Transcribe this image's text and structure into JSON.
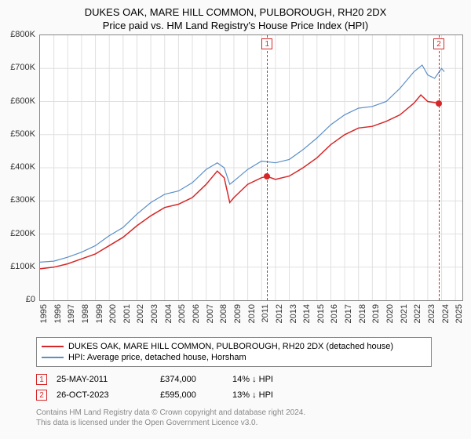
{
  "title": "DUKES OAK, MARE HILL COMMON, PULBOROUGH, RH20 2DX",
  "subtitle": "Price paid vs. HM Land Registry's House Price Index (HPI)",
  "chart": {
    "type": "line",
    "x_range": [
      1995,
      2025.5
    ],
    "y_range": [
      0,
      800000
    ],
    "y_ticks": [
      0,
      100000,
      200000,
      300000,
      400000,
      500000,
      600000,
      700000,
      800000
    ],
    "y_tick_labels": [
      "£0",
      "£100K",
      "£200K",
      "£300K",
      "£400K",
      "£500K",
      "£600K",
      "£700K",
      "£800K"
    ],
    "x_ticks": [
      1995,
      1996,
      1997,
      1998,
      1999,
      2000,
      2001,
      2002,
      2003,
      2004,
      2005,
      2006,
      2007,
      2008,
      2009,
      2010,
      2011,
      2012,
      2013,
      2014,
      2015,
      2016,
      2017,
      2018,
      2019,
      2020,
      2021,
      2022,
      2023,
      2024,
      2025
    ],
    "grid_color": "#e0e0e0",
    "background_color": "#ffffff",
    "border_color": "#888888",
    "series": [
      {
        "name": "price_paid",
        "label": "DUKES OAK, MARE HILL COMMON, PULBOROUGH, RH20 2DX (detached house)",
        "color": "#d62728",
        "width": 1.5,
        "data": [
          [
            1995,
            95000
          ],
          [
            1996,
            100000
          ],
          [
            1997,
            110000
          ],
          [
            1998,
            125000
          ],
          [
            1999,
            140000
          ],
          [
            2000,
            165000
          ],
          [
            2001,
            190000
          ],
          [
            2002,
            225000
          ],
          [
            2003,
            255000
          ],
          [
            2004,
            280000
          ],
          [
            2005,
            290000
          ],
          [
            2006,
            310000
          ],
          [
            2007,
            350000
          ],
          [
            2007.8,
            390000
          ],
          [
            2008.3,
            370000
          ],
          [
            2008.7,
            295000
          ],
          [
            2009,
            310000
          ],
          [
            2010,
            350000
          ],
          [
            2011,
            370000
          ],
          [
            2011.4,
            374000
          ],
          [
            2012,
            365000
          ],
          [
            2013,
            375000
          ],
          [
            2014,
            400000
          ],
          [
            2015,
            430000
          ],
          [
            2016,
            470000
          ],
          [
            2017,
            500000
          ],
          [
            2018,
            520000
          ],
          [
            2019,
            525000
          ],
          [
            2020,
            540000
          ],
          [
            2021,
            560000
          ],
          [
            2022,
            595000
          ],
          [
            2022.5,
            620000
          ],
          [
            2023,
            600000
          ],
          [
            2023.8,
            595000
          ]
        ]
      },
      {
        "name": "hpi",
        "label": "HPI: Average price, detached house, Horsham",
        "color": "#5b8fc7",
        "width": 1.2,
        "data": [
          [
            1995,
            115000
          ],
          [
            1996,
            118000
          ],
          [
            1997,
            130000
          ],
          [
            1998,
            145000
          ],
          [
            1999,
            165000
          ],
          [
            2000,
            195000
          ],
          [
            2001,
            220000
          ],
          [
            2002,
            260000
          ],
          [
            2003,
            295000
          ],
          [
            2004,
            320000
          ],
          [
            2005,
            330000
          ],
          [
            2006,
            355000
          ],
          [
            2007,
            395000
          ],
          [
            2007.8,
            415000
          ],
          [
            2008.3,
            400000
          ],
          [
            2008.7,
            350000
          ],
          [
            2009,
            360000
          ],
          [
            2010,
            395000
          ],
          [
            2011,
            420000
          ],
          [
            2012,
            415000
          ],
          [
            2013,
            425000
          ],
          [
            2014,
            455000
          ],
          [
            2015,
            490000
          ],
          [
            2016,
            530000
          ],
          [
            2017,
            560000
          ],
          [
            2018,
            580000
          ],
          [
            2019,
            585000
          ],
          [
            2020,
            600000
          ],
          [
            2021,
            640000
          ],
          [
            2022,
            690000
          ],
          [
            2022.6,
            710000
          ],
          [
            2023,
            680000
          ],
          [
            2023.5,
            670000
          ],
          [
            2024,
            700000
          ],
          [
            2024.2,
            690000
          ]
        ]
      }
    ],
    "markers": [
      {
        "num": "1",
        "x": 2011.4,
        "y": 374000,
        "color": "#d62728"
      },
      {
        "num": "2",
        "x": 2023.8,
        "y": 595000,
        "color": "#d62728"
      }
    ]
  },
  "legend": {
    "rows": [
      {
        "color": "#d62728",
        "text": "DUKES OAK, MARE HILL COMMON, PULBOROUGH, RH20 2DX (detached house)"
      },
      {
        "color": "#5b8fc7",
        "text": "HPI: Average price, detached house, Horsham"
      }
    ]
  },
  "marker_table": [
    {
      "num": "1",
      "color": "#d62728",
      "date": "25-MAY-2011",
      "price": "£374,000",
      "diff": "14% ↓ HPI"
    },
    {
      "num": "2",
      "color": "#d62728",
      "date": "26-OCT-2023",
      "price": "£595,000",
      "diff": "13% ↓ HPI"
    }
  ],
  "footer": {
    "line1": "Contains HM Land Registry data © Crown copyright and database right 2024.",
    "line2": "This data is licensed under the Open Government Licence v3.0."
  }
}
